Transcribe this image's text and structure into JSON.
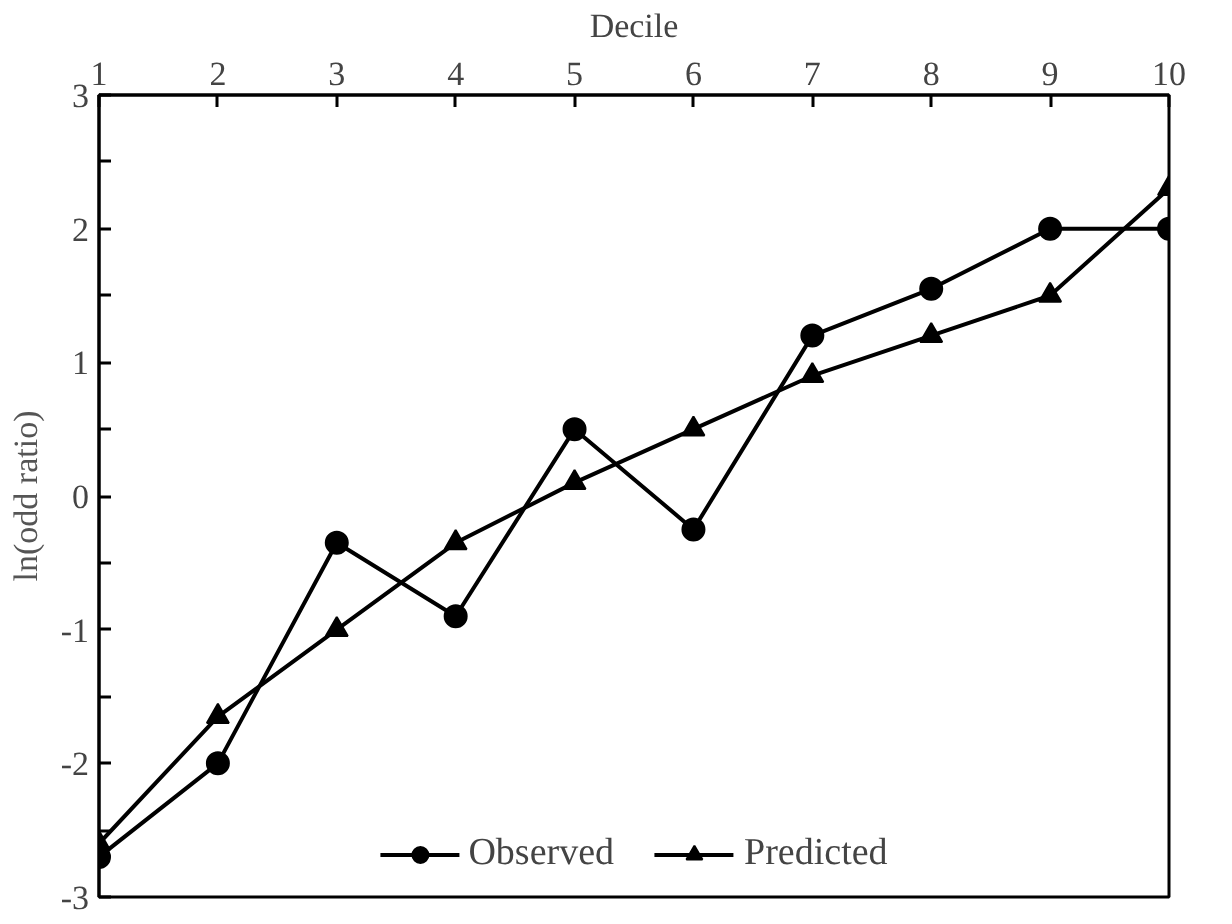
{
  "chart_data": {
    "type": "line",
    "xlabel": "Decile",
    "ylabel": "ln(odd ratio)",
    "x": [
      1,
      2,
      3,
      4,
      5,
      6,
      7,
      8,
      9,
      10
    ],
    "series": [
      {
        "name": "Observed",
        "color": "#000000",
        "marker": "circle",
        "values": [
          -2.7,
          -2.0,
          -0.35,
          -0.9,
          0.5,
          -0.25,
          1.2,
          1.55,
          2.0,
          2.0
        ]
      },
      {
        "name": "Predicted",
        "color": "#000000",
        "marker": "triangle",
        "values": [
          -2.6,
          -1.65,
          -1.0,
          -0.35,
          0.1,
          0.5,
          0.9,
          1.2,
          1.5,
          2.3
        ]
      }
    ],
    "xlim": [
      1,
      10
    ],
    "xticks": [
      1,
      2,
      3,
      4,
      5,
      6,
      7,
      8,
      9,
      10
    ],
    "ylim": [
      -3,
      3
    ],
    "yticks": [
      -3,
      {
        "value": -2.5,
        "label": null
      },
      -2,
      {
        "value": -1.5,
        "label": null
      },
      -1,
      {
        "value": -0.5,
        "label": null
      },
      0,
      {
        "value": 0.5,
        "label": null
      },
      1,
      {
        "value": 1.5,
        "label": null
      },
      2,
      {
        "value": 2.5,
        "label": null
      },
      3
    ],
    "grid": false,
    "legend": "bottom",
    "line_style": "solid"
  }
}
